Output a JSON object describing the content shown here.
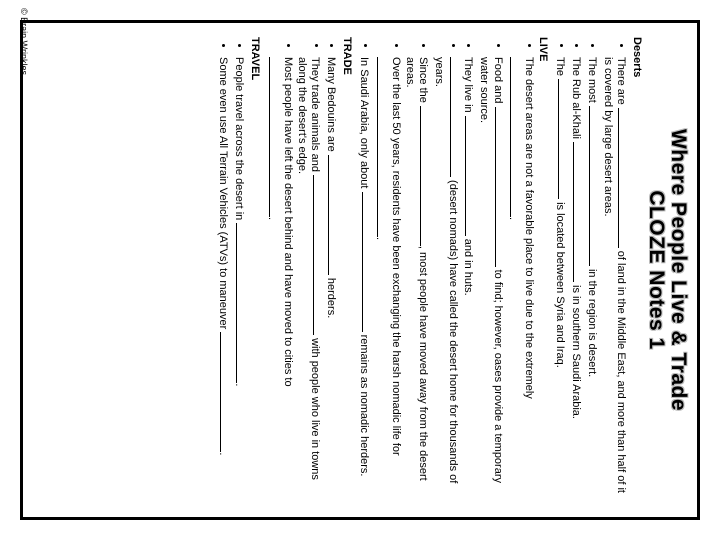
{
  "title_line1": "Where People Live & Trade",
  "title_line2": "CLOZE Notes 1",
  "sections": {
    "deserts": {
      "head": "Deserts",
      "b1a": "There are ",
      "b1b": " of land in the Middle East, and more than half of it is covered by large desert areas.",
      "b2a": "The most ",
      "b2b": " in the region is desert.",
      "b3a": "The Rub al-Khali ",
      "b3b": " is in southern Saudi Arabia.",
      "b4a": "The ",
      "b4b": " is located between Syria and Iraq."
    },
    "live": {
      "head": "LIVE",
      "b1a": "The desert areas are not a favorable place to live due to the extremely ",
      "b1b": ".",
      "b2a": "Food and ",
      "b2b": " to find; however, oases provide a temporary water source.",
      "b3a": "They live in ",
      "b3b": " and in huts.",
      "b4a": "",
      "b4b": " (desert nomads) have called the desert home for thousands of years.",
      "b5a": "Since the ",
      "b5b": ", most people have moved away from the desert areas.",
      "b6a": "Over the last 50 years, residents have been exchanging the harsh nomadic life for ",
      "b6b": ".",
      "b7a": "In Saudi Arabia, only about ",
      "b7b": " remains as nomadic herders."
    },
    "trade": {
      "head": "TRADE",
      "b1a": "Many Bedouins are ",
      "b1b": " herders.",
      "b2a": "They trade animals and ",
      "b2b": " with people who live in towns along the desert's edge.",
      "b3a": "Most people have left the desert behind and have moved to cities to ",
      "b3b": "."
    },
    "travel": {
      "head": "TRAVEL",
      "b1a": "People travel across the desert in ",
      "b1b": ".",
      "b2a": "Some even use All Terrain Vehicles (ATVs) to maneuver ",
      "b2b": "."
    }
  },
  "copyright": "© Brain Wrinkles"
}
